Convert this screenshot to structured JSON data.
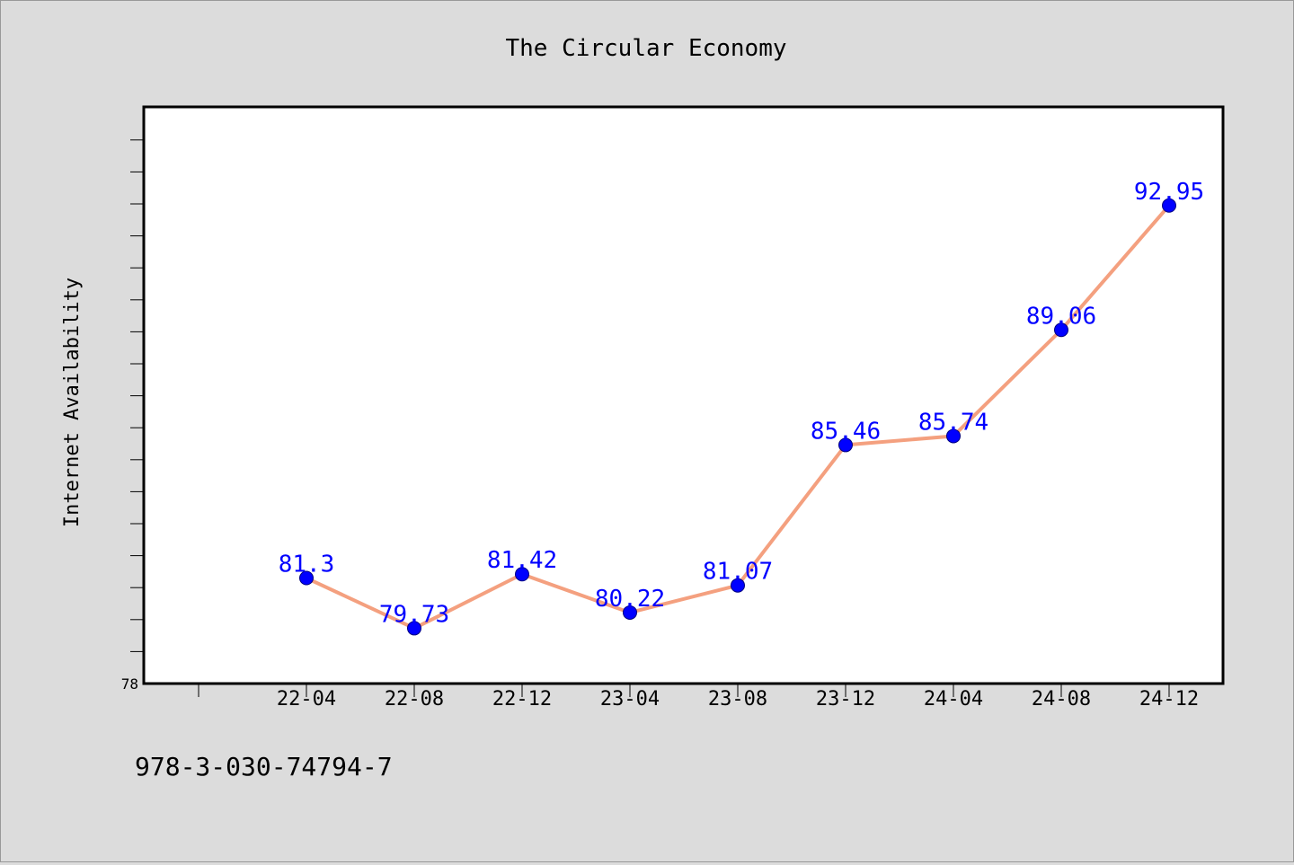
{
  "chart_data": {
    "type": "line",
    "title": "The Circular Economy",
    "xlabel": "",
    "ylabel": "Internet Availability",
    "categories": [
      "22-04",
      "22-08",
      "22-12",
      "23-04",
      "23-08",
      "23-12",
      "24-04",
      "24-08",
      "24-12"
    ],
    "series": [
      {
        "values": [
          81.3,
          79.73,
          81.42,
          80.22,
          81.07,
          85.46,
          85.74,
          89.06,
          92.95
        ]
      }
    ],
    "data_labels": [
      "81.3",
      "79.73",
      "81.42",
      "80.22",
      "81.07",
      "85.46",
      "85.74",
      "89.06",
      "92.95"
    ],
    "y_tick_labels": [
      {
        "value": 78,
        "label": "78"
      }
    ],
    "ylim": [
      78,
      96
    ],
    "grid": false,
    "legend": "none",
    "colors": {
      "line": "#f4a07f",
      "marker": "#0000ff",
      "data_label": "#0000ff",
      "background": "#dcdcdc",
      "plot_background": "#ffffff"
    }
  },
  "footer": {
    "isbn": "978-3-030-74794-7"
  }
}
